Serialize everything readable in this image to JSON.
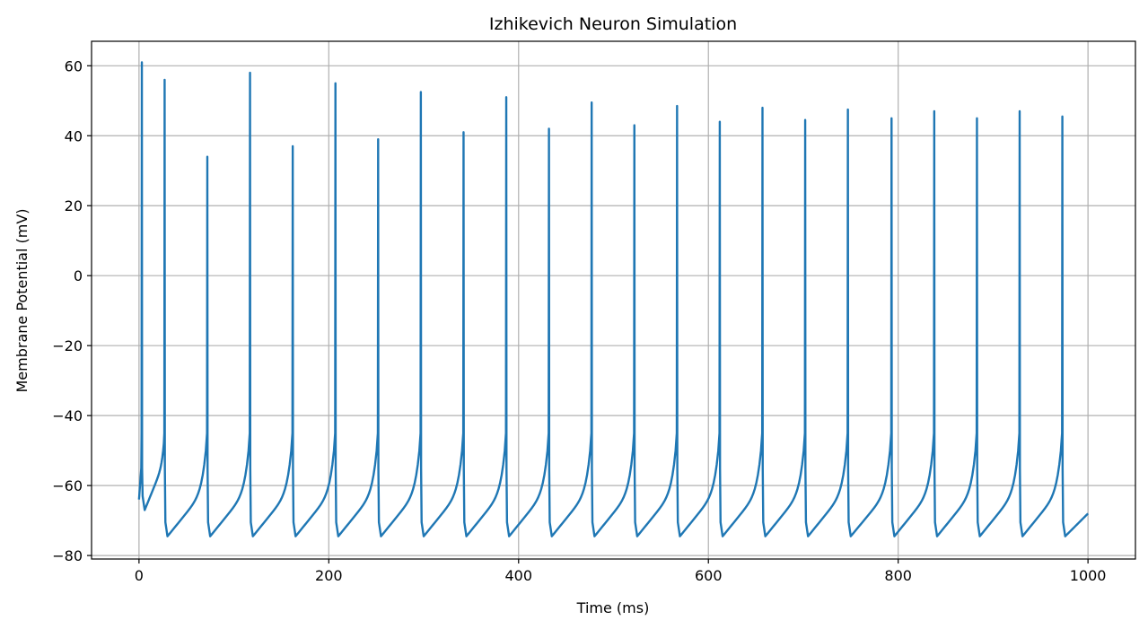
{
  "chart_data": {
    "type": "line",
    "title": "Izhikevich Neuron Simulation",
    "xlabel": "Time (ms)",
    "ylabel": "Membrane Potential (mV)",
    "xlim": [
      -50,
      1050
    ],
    "ylim": [
      -81,
      67
    ],
    "xticks": [
      0,
      200,
      400,
      600,
      800,
      1000
    ],
    "yticks": [
      -80,
      -60,
      -40,
      -20,
      0,
      20,
      40,
      60
    ],
    "xtick_labels": [
      "0",
      "200",
      "400",
      "600",
      "800",
      "1000"
    ],
    "ytick_labels": [
      "−80",
      "−60",
      "−40",
      "−20",
      "0",
      "20",
      "40",
      "60"
    ],
    "grid": true,
    "start_value": -64,
    "end_value": -68,
    "series": [
      {
        "color": "#1f77b4",
        "spike_times": [
          3,
          27,
          72,
          117,
          162,
          207,
          252,
          297,
          342,
          387,
          432,
          477,
          522,
          567,
          612,
          657,
          702,
          747,
          793,
          838,
          883,
          928,
          973
        ],
        "spike_peaks": [
          61,
          56,
          34,
          58,
          37,
          55,
          39,
          52.5,
          41,
          51,
          42,
          49.5,
          43,
          48.5,
          44,
          48,
          44.5,
          47.5,
          45,
          47,
          45,
          47,
          45.5
        ],
        "reset_troughs": [
          -67,
          -74.5,
          -74.5,
          -74.5,
          -74.5,
          -74.5,
          -74.5,
          -74.5,
          -74.5,
          -74.5,
          -74.5,
          -74.5,
          -74.5,
          -74.5,
          -74.5,
          -74.5,
          -74.5,
          -74.5,
          -74.5,
          -74.5,
          -74.5,
          -74.5,
          -74.5
        ]
      }
    ]
  }
}
